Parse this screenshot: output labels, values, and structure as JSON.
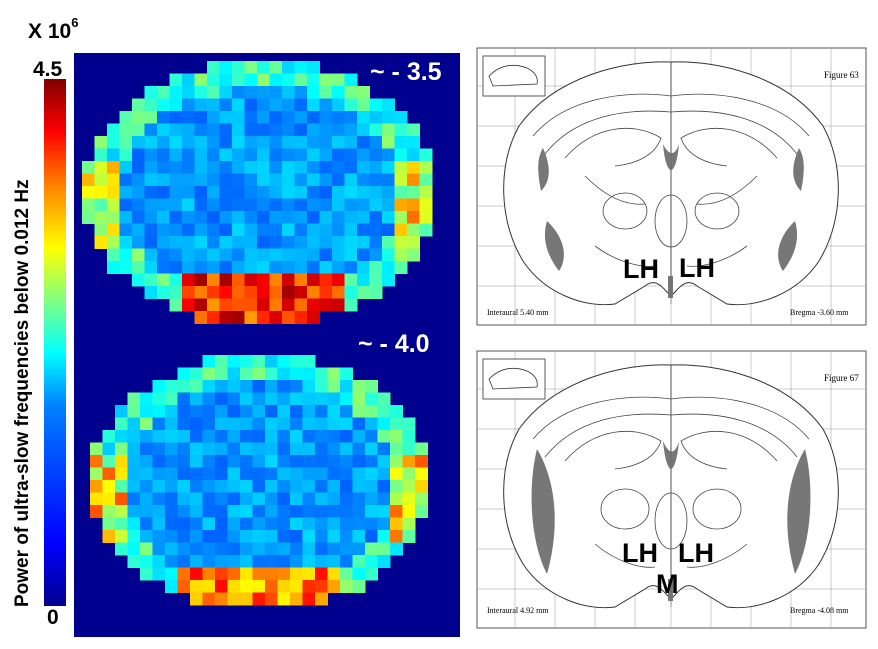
{
  "colorbar": {
    "multiplier_base": "X 10",
    "multiplier_exponent": "6",
    "max_label": "4.5",
    "min_label": "0",
    "axis_label": "Power of ultra-slow frequencies below 0.012 Hz",
    "colormap": "jet"
  },
  "heatmap": {
    "sections": [
      {
        "label": "~ - 3.5"
      },
      {
        "label": "~ - 4.0"
      }
    ]
  },
  "atlas": [
    {
      "figure_label": "Figure 63",
      "interaural": "Interaural 5.40 mm",
      "bregma": "Bregma -3.60 mm",
      "regions": [
        "LH",
        "LH"
      ]
    },
    {
      "figure_label": "Figure 67",
      "interaural": "Interaural 4.92 mm",
      "bregma": "Bregma -4.08 mm",
      "regions": [
        "LH",
        "LH",
        "M"
      ]
    }
  ]
}
